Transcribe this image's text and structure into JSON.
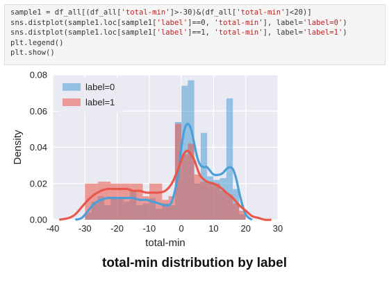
{
  "code_cell": {
    "lines": [
      [
        {
          "t": "sample1 = df_all[(df_all["
        },
        {
          "t": "'total-min'",
          "s": true
        },
        {
          "t": "]>-30)&(df_all["
        },
        {
          "t": "'total-min'",
          "s": true
        },
        {
          "t": "]<20)]"
        }
      ],
      [
        {
          "t": "sns.distplot(sample1.loc[sample1["
        },
        {
          "t": "'label'",
          "s": true
        },
        {
          "t": "]==0, "
        },
        {
          "t": "'total-min'",
          "s": true
        },
        {
          "t": "], label="
        },
        {
          "t": "'label=0'",
          "s": true
        },
        {
          "t": ")"
        }
      ],
      [
        {
          "t": "sns.distplot(sample1.loc[sample1["
        },
        {
          "t": "'label'",
          "s": true
        },
        {
          "t": "]==1, "
        },
        {
          "t": "'total-min'",
          "s": true
        },
        {
          "t": "], label="
        },
        {
          "t": "'label=1'",
          "s": true
        },
        {
          "t": ")"
        }
      ],
      [
        {
          "t": "plt.legend()"
        }
      ],
      [
        {
          "t": "plt.show()"
        }
      ]
    ]
  },
  "caption": "total-min distribution by label",
  "colors": {
    "label0": "#4c9fd6",
    "label1": "#e8574a",
    "plot_bg": "#eaeaf2",
    "grid": "#ffffff"
  },
  "chart_data": {
    "type": "histogram",
    "xlabel": "total-min",
    "ylabel": "Density",
    "xlim": [
      -40,
      30
    ],
    "ylim": [
      0,
      0.08
    ],
    "xticks": [
      -40,
      -30,
      -20,
      -10,
      0,
      10,
      20,
      30
    ],
    "yticks": [
      0.0,
      0.02,
      0.04,
      0.06,
      0.08
    ],
    "legend_position": "top-left",
    "grid": true,
    "series": [
      {
        "name": "label=0",
        "color": "#4c9fd6",
        "bins": [
          {
            "x0": -30,
            "x1": -28,
            "y": 0.004
          },
          {
            "x0": -28,
            "x1": -26,
            "y": 0.01
          },
          {
            "x0": -26,
            "x1": -24,
            "y": 0.013
          },
          {
            "x0": -24,
            "x1": -22,
            "y": 0.008
          },
          {
            "x0": -22,
            "x1": -20,
            "y": 0.012
          },
          {
            "x0": -20,
            "x1": -18,
            "y": 0.012
          },
          {
            "x0": -18,
            "x1": -16,
            "y": 0.01
          },
          {
            "x0": -16,
            "x1": -14,
            "y": 0.016
          },
          {
            "x0": -14,
            "x1": -12,
            "y": 0.008
          },
          {
            "x0": -12,
            "x1": -10,
            "y": 0.009
          },
          {
            "x0": -10,
            "x1": -8,
            "y": 0.012
          },
          {
            "x0": -8,
            "x1": -6,
            "y": 0.006
          },
          {
            "x0": -6,
            "x1": -4,
            "y": 0.009
          },
          {
            "x0": -4,
            "x1": -2,
            "y": 0.008
          },
          {
            "x0": -2,
            "x1": 0,
            "y": 0.054
          },
          {
            "x0": 0,
            "x1": 2,
            "y": 0.074
          },
          {
            "x0": 2,
            "x1": 4,
            "y": 0.077
          },
          {
            "x0": 4,
            "x1": 6,
            "y": 0.02
          },
          {
            "x0": 6,
            "x1": 8,
            "y": 0.048
          },
          {
            "x0": 8,
            "x1": 10,
            "y": 0.024
          },
          {
            "x0": 10,
            "x1": 12,
            "y": 0.022
          },
          {
            "x0": 12,
            "x1": 14,
            "y": 0.023
          },
          {
            "x0": 14,
            "x1": 16,
            "y": 0.067
          },
          {
            "x0": 16,
            "x1": 18,
            "y": 0.017
          },
          {
            "x0": 18,
            "x1": 20,
            "y": 0.003
          }
        ],
        "kde": {
          "x": [
            -33,
            -31,
            -29,
            -27,
            -25,
            -23,
            -21,
            -19,
            -17,
            -15,
            -13,
            -11,
            -9,
            -7,
            -5,
            -3,
            -1,
            0,
            1,
            2,
            3,
            4,
            5,
            6,
            7,
            8,
            10,
            12,
            13,
            14,
            15,
            16,
            17,
            18,
            19,
            20,
            21,
            22
          ],
          "y": [
            0.0,
            0.001,
            0.005,
            0.009,
            0.011,
            0.012,
            0.012,
            0.012,
            0.012,
            0.012,
            0.011,
            0.011,
            0.01,
            0.009,
            0.008,
            0.01,
            0.025,
            0.04,
            0.05,
            0.053,
            0.05,
            0.042,
            0.034,
            0.03,
            0.029,
            0.029,
            0.025,
            0.025,
            0.026,
            0.028,
            0.029,
            0.028,
            0.023,
            0.015,
            0.008,
            0.003,
            0.001,
            0.0
          ]
        }
      },
      {
        "name": "label=1",
        "color": "#e8574a",
        "bins": [
          {
            "x0": -30,
            "x1": -28,
            "y": 0.02
          },
          {
            "x0": -28,
            "x1": -26,
            "y": 0.02
          },
          {
            "x0": -26,
            "x1": -24,
            "y": 0.021
          },
          {
            "x0": -24,
            "x1": -22,
            "y": 0.021
          },
          {
            "x0": -22,
            "x1": -20,
            "y": 0.02
          },
          {
            "x0": -20,
            "x1": -18,
            "y": 0.02
          },
          {
            "x0": -18,
            "x1": -16,
            "y": 0.02
          },
          {
            "x0": -16,
            "x1": -14,
            "y": 0.02
          },
          {
            "x0": -14,
            "x1": -12,
            "y": 0.02
          },
          {
            "x0": -12,
            "x1": -10,
            "y": 0.013
          },
          {
            "x0": -10,
            "x1": -8,
            "y": 0.02
          },
          {
            "x0": -8,
            "x1": -6,
            "y": 0.02
          },
          {
            "x0": -6,
            "x1": -4,
            "y": 0.011
          },
          {
            "x0": -4,
            "x1": -2,
            "y": 0.013
          },
          {
            "x0": -2,
            "x1": 0,
            "y": 0.053
          },
          {
            "x0": 0,
            "x1": 2,
            "y": 0.036
          },
          {
            "x0": 2,
            "x1": 4,
            "y": 0.042
          },
          {
            "x0": 4,
            "x1": 6,
            "y": 0.025
          },
          {
            "x0": 6,
            "x1": 8,
            "y": 0.021
          },
          {
            "x0": 8,
            "x1": 10,
            "y": 0.02
          },
          {
            "x0": 10,
            "x1": 12,
            "y": 0.02
          },
          {
            "x0": 12,
            "x1": 14,
            "y": 0.016
          },
          {
            "x0": 14,
            "x1": 16,
            "y": 0.014
          },
          {
            "x0": 16,
            "x1": 18,
            "y": 0.009
          },
          {
            "x0": 18,
            "x1": 20,
            "y": 0.005
          }
        ],
        "kde": {
          "x": [
            -38,
            -35,
            -33,
            -31,
            -29,
            -27,
            -25,
            -23,
            -21,
            -19,
            -17,
            -15,
            -13,
            -11,
            -9,
            -7,
            -5,
            -3,
            -1,
            0,
            1,
            2,
            3,
            4,
            5,
            6,
            8,
            10,
            12,
            14,
            16,
            18,
            20,
            22,
            24,
            26,
            28
          ],
          "y": [
            0.0,
            0.001,
            0.003,
            0.007,
            0.011,
            0.014,
            0.016,
            0.017,
            0.017,
            0.017,
            0.017,
            0.016,
            0.016,
            0.015,
            0.015,
            0.015,
            0.016,
            0.02,
            0.028,
            0.033,
            0.037,
            0.038,
            0.036,
            0.033,
            0.028,
            0.024,
            0.021,
            0.02,
            0.018,
            0.015,
            0.012,
            0.008,
            0.005,
            0.002,
            0.001,
            0.0,
            0.0
          ]
        }
      }
    ]
  }
}
